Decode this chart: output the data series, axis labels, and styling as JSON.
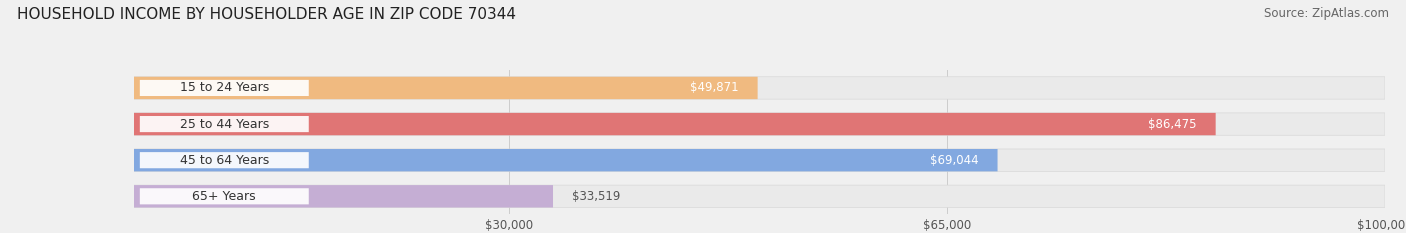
{
  "title": "HOUSEHOLD INCOME BY HOUSEHOLDER AGE IN ZIP CODE 70344",
  "source": "Source: ZipAtlas.com",
  "categories": [
    "15 to 24 Years",
    "25 to 44 Years",
    "45 to 64 Years",
    "65+ Years"
  ],
  "values": [
    49871,
    86475,
    69044,
    33519
  ],
  "bar_colors": [
    "#f0ba80",
    "#e07575",
    "#82a8e0",
    "#c5aed4"
  ],
  "label_colors": [
    "#555555",
    "#ffffff",
    "#555555",
    "#555555"
  ],
  "value_label_inside": [
    true,
    true,
    true,
    false
  ],
  "xlim_data": [
    0,
    100000
  ],
  "xticks": [
    30000,
    65000,
    100000
  ],
  "xtick_labels": [
    "$30,000",
    "$65,000",
    "$100,000"
  ],
  "background_color": "#f0f0f0",
  "bar_bg_color": "#eaeaea",
  "title_fontsize": 11,
  "source_fontsize": 8.5,
  "label_fontsize": 8.5,
  "category_fontsize": 9,
  "bar_height": 0.62,
  "value_labels": [
    "$49,871",
    "$86,475",
    "$69,044",
    "$33,519"
  ],
  "label_pill_color": "#ffffff",
  "value_inside_threshold": 45000
}
